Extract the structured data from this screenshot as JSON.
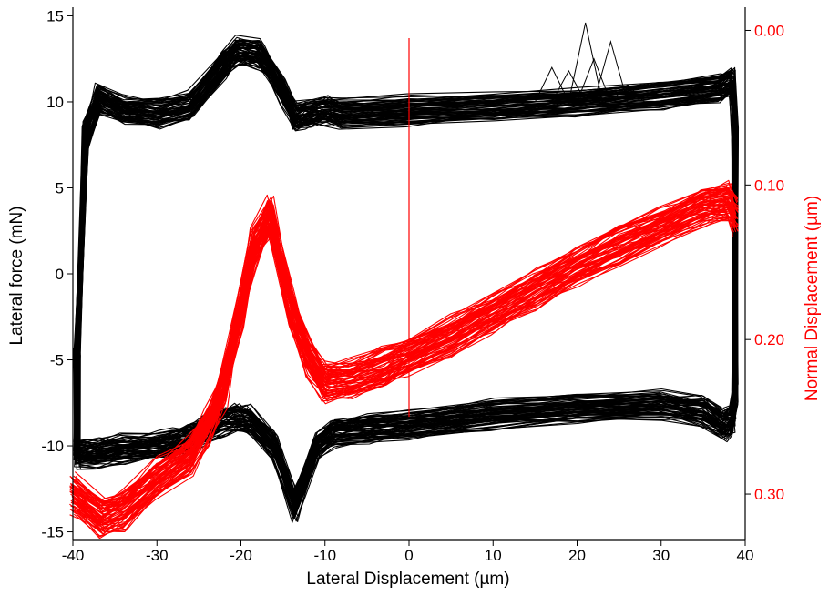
{
  "chart_data": {
    "type": "line",
    "title": "",
    "xlabel": "Lateral Displacement (µm)",
    "ylabel_left": "Lateral force (mN)",
    "ylabel_right": "Normal Displacement (µm)",
    "xlim": [
      -40,
      40
    ],
    "ylim_left": [
      -15.5,
      15.5
    ],
    "ylim_right": [
      0.33,
      -0.015
    ],
    "right_axis_inverted": true,
    "x_ticks": [
      "-40",
      "-30",
      "-20",
      "-10",
      "0",
      "10",
      "20",
      "30",
      "40"
    ],
    "y_left_ticks": [
      "15",
      "10",
      "5",
      "0",
      "-5",
      "-10",
      "-15"
    ],
    "y_right_ticks": [
      "0.00",
      "0.10",
      "0.20",
      "0.30"
    ],
    "grid": false,
    "legend": "none",
    "colors": {
      "lateral_force": "#000000",
      "normal_displacement": "#ff0000",
      "right_axis": "#ff0000"
    },
    "series": [
      {
        "axis": "left",
        "color": "#000000",
        "description_cycles": "many overlapping friction loops",
        "x": [
          -39.5,
          -38.5,
          -37,
          -34,
          -30,
          -26,
          -22,
          -20.5,
          -18,
          -17,
          -15,
          -13.5,
          -12,
          -10,
          -8,
          0,
          10,
          20,
          30,
          37,
          38.5,
          38.8,
          38.8,
          38.5,
          37.5,
          35,
          30,
          20,
          10,
          0,
          -5,
          -9,
          -11,
          -13.5,
          -16,
          -19,
          -20.5,
          -22,
          -24,
          -26,
          -28,
          -30,
          -34,
          -37,
          -39.5,
          -39.5
        ],
        "y": [
          -5,
          8,
          10.2,
          9.5,
          9.3,
          9.8,
          12.2,
          13,
          12.8,
          12.3,
          10.5,
          9.1,
          9.3,
          9.5,
          9.3,
          9.5,
          9.7,
          10,
          10.4,
          10.8,
          11.2,
          8,
          -7,
          -8.5,
          -8.8,
          -8,
          -7.6,
          -7.8,
          -8.2,
          -8.8,
          -9,
          -9.2,
          -10,
          -13.5,
          -10,
          -8.5,
          -8.3,
          -8.6,
          -9,
          -9.5,
          -9.8,
          -10,
          -10.2,
          -10.4,
          -10.5,
          -5
        ]
      },
      {
        "axis": "right",
        "color": "#ff0000",
        "description_cycles": "many overlapping normal-displacement traces",
        "x": [
          -40,
          -36.5,
          -34,
          -30,
          -26,
          -24,
          -22,
          -20,
          -18.5,
          -16.5,
          -14,
          -12,
          -10,
          -7,
          -3,
          0,
          5,
          10,
          15,
          20,
          25,
          30,
          35,
          38,
          38.8
        ],
        "y": [
          0.3,
          0.315,
          0.31,
          0.29,
          0.275,
          0.255,
          0.23,
          0.18,
          0.14,
          0.12,
          0.18,
          0.21,
          0.228,
          0.226,
          0.218,
          0.21,
          0.198,
          0.183,
          0.168,
          0.152,
          0.139,
          0.127,
          0.113,
          0.11,
          0.12
        ]
      }
    ],
    "annotations": [
      {
        "type": "vertical-line",
        "x": 0,
        "y_right_from": 0.005,
        "y_right_to": 0.25,
        "color": "#ff0000"
      }
    ]
  }
}
